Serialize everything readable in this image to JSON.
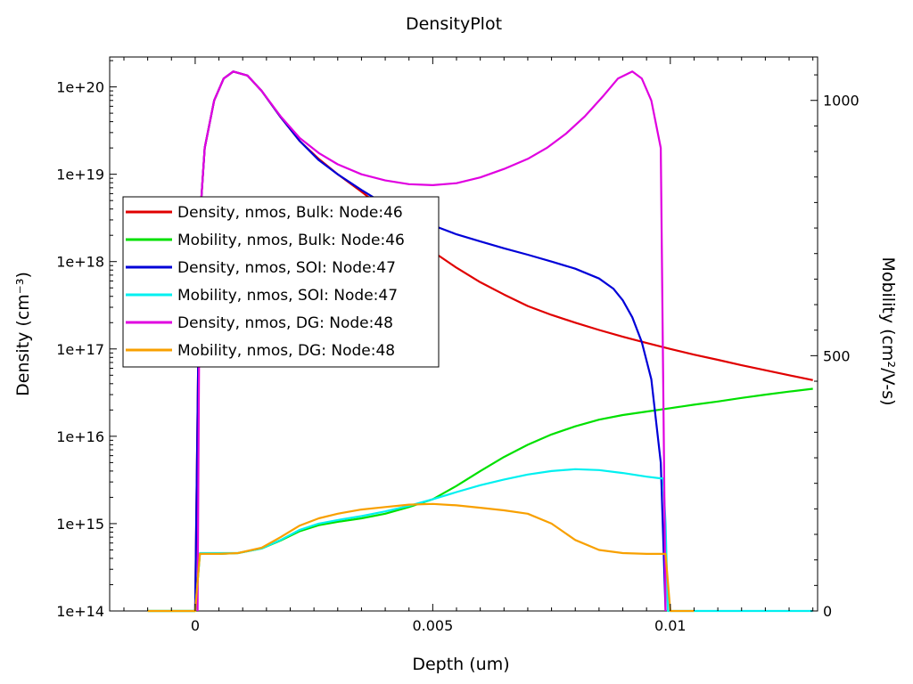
{
  "chart_data": {
    "type": "line",
    "title": "DensityPlot",
    "xlabel": "Depth (um)",
    "ylabel_left": "Density (cm⁻³)",
    "ylabel_right": "Mobility (cm²/V-s)",
    "xlim": [
      -0.0018,
      0.0131
    ],
    "x_ticks": [
      0,
      0.005,
      0.01
    ],
    "x_tick_labels": [
      "0",
      "0.005",
      "0.01"
    ],
    "y_left_scale": "log",
    "y_left_lim": [
      100000000000000.0,
      2.2e+20
    ],
    "y_left_ticks": [
      100000000000000.0,
      1000000000000000.0,
      1e+16,
      1e+17,
      1e+18,
      1e+19,
      1e+20
    ],
    "y_left_tick_labels": [
      "1e+14",
      "1e+15",
      "1e+16",
      "1e+17",
      "1e+18",
      "1e+19",
      "1e+20"
    ],
    "y_right_lim": [
      0,
      1085
    ],
    "y_right_ticks": [
      0,
      500,
      1000
    ],
    "y_right_tick_labels": [
      "0",
      "500",
      "1000"
    ],
    "grid": false,
    "legend_position": "upper-left",
    "series": [
      {
        "name": "Density, nmos, Bulk: Node:46",
        "axis": "left",
        "color": "#e00000",
        "x": [
          0,
          0.0001,
          0.0002,
          0.0004,
          0.0006,
          0.0008,
          0.0011,
          0.0014,
          0.0018,
          0.0022,
          0.0026,
          0.003,
          0.0035,
          0.004,
          0.0045,
          0.005,
          0.0055,
          0.006,
          0.0065,
          0.007,
          0.0075,
          0.008,
          0.0085,
          0.009,
          0.0095,
          0.01,
          0.0105,
          0.011,
          0.0115,
          0.012,
          0.0125,
          0.013
        ],
        "y": [
          100000000000000.0,
          3e+18,
          2e+19,
          7e+19,
          1.25e+20,
          1.5e+20,
          1.35e+20,
          9e+19,
          4.5e+19,
          2.4e+19,
          1.5e+19,
          1e+19,
          6.3e+18,
          3.9e+18,
          2.2e+18,
          1.3e+18,
          8.5e+17,
          5.8e+17,
          4.2e+17,
          3.1e+17,
          2.45e+17,
          2e+17,
          1.65e+17,
          1.38e+17,
          1.17e+17,
          1e+17,
          8.6e+16,
          7.5e+16,
          6.5e+16,
          5.7e+16,
          5e+16,
          4.4e+16
        ]
      },
      {
        "name": "Mobility, nmos, Bulk: Node:46",
        "axis": "left",
        "color": "#00e000",
        "x": [
          -0.001,
          0,
          0.0001,
          0.0005,
          0.0009,
          0.0014,
          0.0018,
          0.0022,
          0.0026,
          0.003,
          0.0035,
          0.004,
          0.0045,
          0.005,
          0.0055,
          0.006,
          0.0065,
          0.007,
          0.0075,
          0.008,
          0.0085,
          0.009,
          0.0095,
          0.01,
          0.0105,
          0.011,
          0.0115,
          0.012,
          0.0125,
          0.013
        ],
        "y": [
          100000000000000.0,
          100000000000000.0,
          450000000000000.0,
          450000000000000.0,
          460000000000000.0,
          520000000000000.0,
          640000000000000.0,
          820000000000000.0,
          960000000000000.0,
          1050000000000000.0,
          1150000000000000.0,
          1300000000000000.0,
          1550000000000000.0,
          1900000000000000.0,
          2700000000000000.0,
          4000000000000000.0,
          5800000000000000.0,
          8000000000000000.0,
          1.05e+16,
          1.3e+16,
          1.55e+16,
          1.75e+16,
          1.92e+16,
          2.1e+16,
          2.3e+16,
          2.5e+16,
          2.75e+16,
          3e+16,
          3.25e+16,
          3.5e+16
        ]
      },
      {
        "name": "Density, nmos, SOI: Node:47",
        "axis": "left",
        "color": "#0000d8",
        "x": [
          0,
          0.0001,
          0.0002,
          0.0004,
          0.0006,
          0.0008,
          0.0011,
          0.0014,
          0.0018,
          0.0022,
          0.0026,
          0.003,
          0.0035,
          0.004,
          0.0045,
          0.005,
          0.0055,
          0.006,
          0.0065,
          0.007,
          0.0075,
          0.008,
          0.0085,
          0.0088,
          0.009,
          0.0092,
          0.0094,
          0.0096,
          0.0098,
          0.0099
        ],
        "y": [
          100000000000000.0,
          3e+18,
          2e+19,
          7e+19,
          1.25e+20,
          1.5e+20,
          1.35e+20,
          9e+19,
          4.5e+19,
          2.4e+19,
          1.45e+19,
          1e+19,
          6.6e+18,
          4.5e+18,
          3.3e+18,
          2.6e+18,
          2.05e+18,
          1.7e+18,
          1.42e+18,
          1.2e+18,
          1e+18,
          8.3e+17,
          6.4e+17,
          4.9e+17,
          3.6e+17,
          2.3e+17,
          1.2e+17,
          4.5e+16,
          5000000000000000.0,
          100000000000000.0
        ]
      },
      {
        "name": "Mobility, nmos, SOI: Node:47",
        "axis": "left",
        "color": "#00f0f0",
        "x": [
          -0.001,
          0,
          0.0001,
          0.0005,
          0.0009,
          0.0014,
          0.0018,
          0.0022,
          0.0026,
          0.003,
          0.0035,
          0.004,
          0.0045,
          0.005,
          0.0055,
          0.006,
          0.0065,
          0.007,
          0.0075,
          0.008,
          0.0085,
          0.009,
          0.0095,
          0.0098,
          0.00985,
          0.0099,
          0.00995,
          0.01,
          0.013
        ],
        "y": [
          100000000000000.0,
          100000000000000.0,
          460000000000000.0,
          460000000000000.0,
          460000000000000.0,
          520000000000000.0,
          650000000000000.0,
          850000000000000.0,
          1000000000000000.0,
          1100000000000000.0,
          1220000000000000.0,
          1380000000000000.0,
          1600000000000000.0,
          1900000000000000.0,
          2300000000000000.0,
          2750000000000000.0,
          3200000000000000.0,
          3650000000000000.0,
          4000000000000000.0,
          4200000000000000.0,
          4100000000000000.0,
          3800000000000000.0,
          3450000000000000.0,
          3300000000000000.0,
          3300000000000000.0,
          1000000000000000.0,
          100000000000000.0,
          100000000000000.0,
          100000000000000.0
        ]
      },
      {
        "name": "Density, nmos, DG: Node:48",
        "axis": "left",
        "color": "#e000e0",
        "x": [
          5e-05,
          0.0001,
          0.0002,
          0.0004,
          0.0006,
          0.0008,
          0.0011,
          0.0014,
          0.0018,
          0.0022,
          0.0026,
          0.003,
          0.0035,
          0.004,
          0.0045,
          0.005,
          0.0055,
          0.006,
          0.0065,
          0.007,
          0.0074,
          0.0078,
          0.0082,
          0.0086,
          0.0089,
          0.0092,
          0.0094,
          0.0096,
          0.0098,
          0.0099
        ],
        "y": [
          100000000000000.0,
          3e+18,
          2e+19,
          7e+19,
          1.25e+20,
          1.5e+20,
          1.35e+20,
          9e+19,
          4.6e+19,
          2.6e+19,
          1.75e+19,
          1.3e+19,
          1e+19,
          8.5e+18,
          7.7e+18,
          7.5e+18,
          7.9e+18,
          9.2e+18,
          1.15e+19,
          1.5e+19,
          2e+19,
          2.9e+19,
          4.6e+19,
          8e+19,
          1.25e+20,
          1.5e+20,
          1.25e+20,
          7e+19,
          2e+19,
          100000000000000.0
        ]
      },
      {
        "name": "Mobility, nmos, DG: Node:48",
        "axis": "left",
        "color": "#f8a000",
        "x": [
          -0.001,
          0,
          0.0001,
          0.0005,
          0.0009,
          0.0014,
          0.0018,
          0.0022,
          0.0026,
          0.003,
          0.0035,
          0.004,
          0.0045,
          0.005,
          0.0055,
          0.006,
          0.0065,
          0.007,
          0.0075,
          0.008,
          0.0085,
          0.009,
          0.0095,
          0.0098,
          0.0099,
          0.01,
          0.0105
        ],
        "y": [
          100000000000000.0,
          100000000000000.0,
          450000000000000.0,
          450000000000000.0,
          460000000000000.0,
          530000000000000.0,
          700000000000000.0,
          950000000000000.0,
          1150000000000000.0,
          1300000000000000.0,
          1450000000000000.0,
          1550000000000000.0,
          1650000000000000.0,
          1680000000000000.0,
          1620000000000000.0,
          1520000000000000.0,
          1420000000000000.0,
          1300000000000000.0,
          1000000000000000.0,
          650000000000000.0,
          500000000000000.0,
          460000000000000.0,
          450000000000000.0,
          450000000000000.0,
          450000000000000.0,
          100000000000000.0,
          100000000000000.0
        ]
      }
    ]
  }
}
